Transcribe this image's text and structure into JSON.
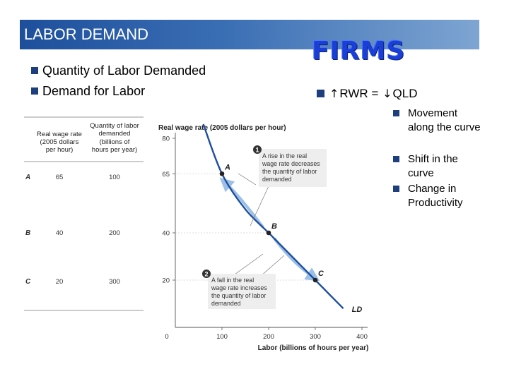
{
  "slide": {
    "title": "LABOR DEMAND",
    "firms_heading": "FIRMS",
    "left_bullets": [
      "Quantity of Labor Demanded",
      "Demand for Labor"
    ],
    "rwr_line": {
      "lhs": "RWR",
      "equals": "=",
      "rhs": "QLD",
      "up_symbol": "↑",
      "down_symbol": "↓"
    },
    "sub_bullets": [
      {
        "lines": [
          "Movement",
          "along the curve"
        ]
      },
      {
        "lines": [
          "Shift in the",
          "curve"
        ]
      },
      {
        "lines": [
          "Change in",
          "Productivity"
        ]
      }
    ]
  },
  "table": {
    "col_rwr": [
      "Real wage rate",
      "(2005 dollars",
      "per hour)"
    ],
    "col_qld": [
      "Quantity of labor",
      "demanded",
      "(billions of",
      "hours per year)"
    ],
    "rows": [
      {
        "label": "A",
        "rwr": "65",
        "qld": "100"
      },
      {
        "label": "B",
        "rwr": "40",
        "qld": "200"
      },
      {
        "label": "C",
        "rwr": "20",
        "qld": "300"
      }
    ]
  },
  "chart_data": {
    "type": "line",
    "ylabel": "Real wage rate (2005 dollars per hour)",
    "xlabel": "Labor (billions of hours per year)",
    "x_ticks": [
      "0",
      "100",
      "200",
      "300",
      "400"
    ],
    "y_ticks": [
      "20",
      "40",
      "65",
      "80"
    ],
    "xlim": [
      0,
      400
    ],
    "ylim": [
      0,
      80
    ],
    "series": [
      {
        "name": "LD",
        "curve_points": [
          [
            60,
            86
          ],
          [
            100,
            65
          ],
          [
            150,
            50
          ],
          [
            200,
            40
          ],
          [
            250,
            30
          ],
          [
            300,
            20
          ],
          [
            330,
            14
          ],
          [
            360,
            8
          ]
        ]
      }
    ],
    "points": [
      {
        "label": "A",
        "x": 100,
        "y": 65
      },
      {
        "label": "B",
        "x": 200,
        "y": 40
      },
      {
        "label": "C",
        "x": 300,
        "y": 20
      }
    ],
    "annotations": [
      {
        "number": "1",
        "lines": [
          "A rise in the real",
          "wage rate decreases",
          "the quantity of labor",
          "demanded"
        ]
      },
      {
        "number": "2",
        "lines": [
          "A fall in the real",
          "wage rate increases",
          "the quantity of labor",
          "demanded"
        ]
      }
    ],
    "colors": {
      "curve": "#1f4fa0",
      "arrow": "#9cc0e6",
      "dot": "#222222",
      "note_bg": "#eeeeee"
    }
  }
}
